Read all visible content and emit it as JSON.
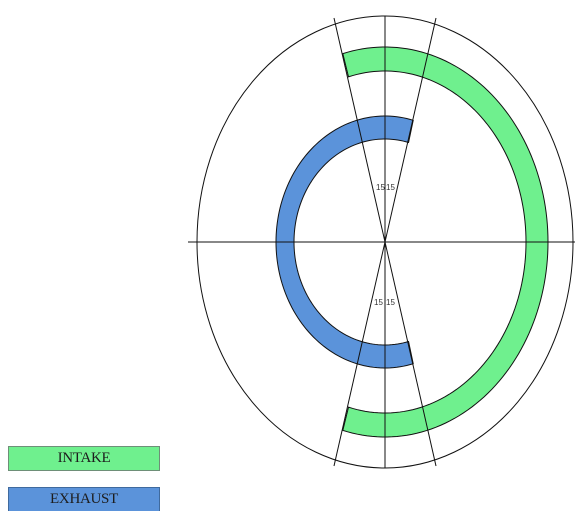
{
  "diagram": {
    "colors": {
      "intake": "#6ff08e",
      "exhaust": "#5b93da",
      "outline": "#111111",
      "background": "#ffffff"
    },
    "degree_labels": {
      "exhaust_open_left": "15",
      "exhaust_open_right": "15",
      "exhaust_close_left": "15",
      "exhaust_close_right": "15"
    }
  },
  "legend": {
    "intake_label": "INTAKE",
    "exhaust_label": "EXHAUST"
  }
}
